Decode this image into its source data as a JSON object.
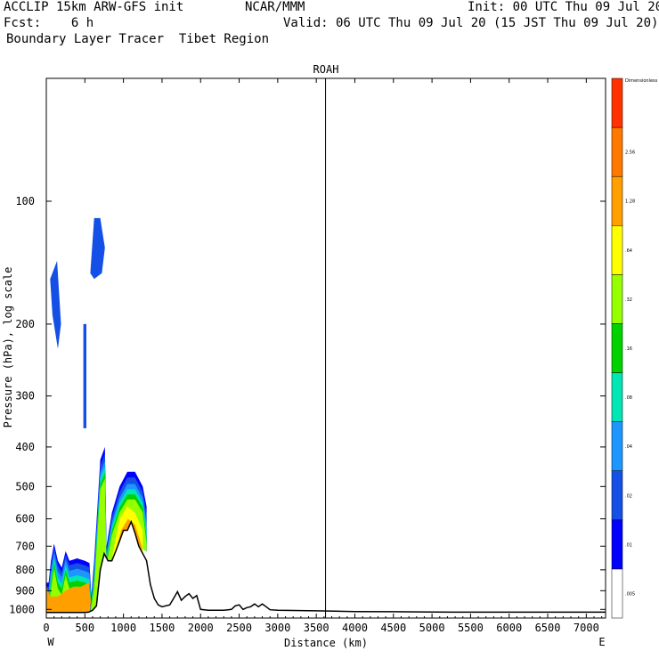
{
  "header": {
    "line1_left": "ACCLIP 15km ARW-GFS init",
    "line1_center": "NCAR/MMM",
    "line1_right": "Init: 00 UTC Thu 09 Jul 20",
    "line2_left": "Fcst:    6 h",
    "line2_right": "Valid: 06 UTC Thu 09 Jul 20 (15 JST Thu 09 Jul 20)",
    "line3_left": "Boundary Layer Tracer  Tibet Region"
  },
  "chart_data": {
    "type": "contour-cross-section",
    "title": "ROAH",
    "xlabel": "Distance (km)",
    "ylabel": "Pressure (hPa), log scale",
    "x_ticks": [
      "0",
      "500",
      "1000",
      "1500",
      "2000",
      "2500",
      "3000",
      "3500",
      "4000",
      "4500",
      "5000",
      "5500",
      "6000",
      "6500",
      "7000"
    ],
    "y_ticks": [
      "100",
      "200",
      "300",
      "400",
      "500",
      "600",
      "700",
      "800",
      "900",
      "1000"
    ],
    "xlim": [
      0,
      7250
    ],
    "ylim": [
      1050,
      50
    ],
    "x_end_labels": {
      "left": "W",
      "right": "E"
    },
    "marker_line_km": 3620,
    "colorbar": {
      "unit_label": "Dimensionless",
      "levels": [
        ".005",
        ".01",
        ".02",
        ".04",
        ".08",
        ".16",
        ".32",
        ".64",
        "1.28",
        "2.56"
      ],
      "colors": [
        "#ffffff",
        "#0000ff",
        "#1450e6",
        "#1e96ff",
        "#00e6b4",
        "#00d200",
        "#96ff00",
        "#ffff00",
        "#ffa000",
        "#ff7800",
        "#ff3200"
      ]
    },
    "terrain": {
      "x": [
        0,
        50,
        100,
        150,
        200,
        250,
        300,
        350,
        400,
        450,
        500,
        550,
        600,
        650,
        700,
        750,
        800,
        850,
        900,
        950,
        1000,
        1050,
        1100,
        1150,
        1200,
        1250,
        1300,
        1350,
        1400,
        1450,
        1500,
        1600,
        1650,
        1700,
        1750,
        1800,
        1850,
        1900,
        1950,
        2000,
        2100,
        2200,
        2300,
        2400,
        2450,
        2500,
        2550,
        2600,
        2650,
        2700,
        2750,
        2800,
        2850,
        2900,
        3000,
        3500,
        4000,
        4500,
        5000,
        6000,
        7000,
        7250
      ],
      "p": [
        1018,
        1018,
        1018,
        1018,
        1018,
        1018,
        1018,
        1018,
        1018,
        1018,
        1018,
        1016,
        1005,
        980,
        800,
        730,
        760,
        760,
        720,
        680,
        640,
        640,
        610,
        650,
        700,
        730,
        760,
        870,
        940,
        975,
        985,
        975,
        940,
        905,
        950,
        930,
        915,
        940,
        925,
        1000,
        1005,
        1005,
        1005,
        1000,
        980,
        975,
        1000,
        990,
        985,
        970,
        985,
        970,
        985,
        1002,
        1005,
        1008,
        1012,
        1013,
        1015,
        1016,
        1016,
        1016
      ]
    }
  }
}
